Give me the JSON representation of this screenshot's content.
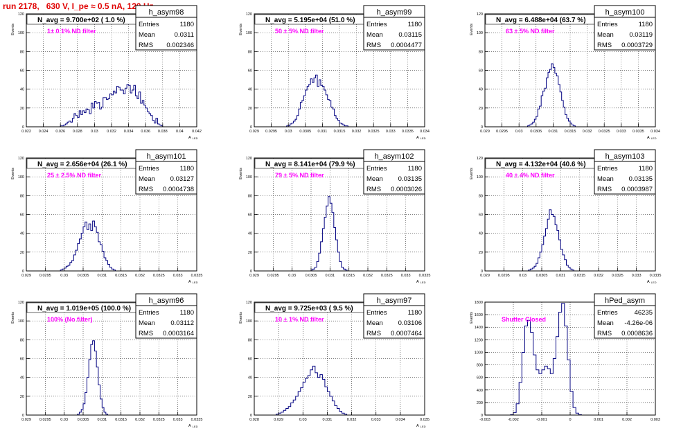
{
  "header": {
    "title": "run 2178,   630 V, I_pe ≈ 0.5 nA, 120 Hz"
  },
  "chart_data": [
    {
      "type": "bar",
      "histogram": "h_asym98",
      "xlabel": "A_{LED}",
      "ylabel": "Events",
      "xlim": [
        0.022,
        0.042
      ],
      "ylim": [
        0,
        120
      ],
      "x_ticks": [
        "0.022",
        "0.024",
        "0.026",
        "0.028",
        "0.03",
        "0.032",
        "0.034",
        "0.036",
        "0.038",
        "0.04",
        "0.042"
      ],
      "y_ticks": [
        "0",
        "20",
        "40",
        "60",
        "80",
        "100",
        "120"
      ],
      "stats": {
        "name": "h_asym98",
        "entries": "1180",
        "mean": "0.0311",
        "rms": "0.002346"
      },
      "n_avg": "N_avg = 9.700e+02 ( 1.0 %)",
      "annotation": "1± 0.1% ND filter",
      "grid": true,
      "bins": {
        "start": 0.026,
        "width": 0.0002,
        "counts": [
          1,
          1,
          2,
          3,
          5,
          6,
          5,
          9,
          14,
          12,
          10,
          17,
          13,
          17,
          15,
          19,
          18,
          14,
          25,
          20,
          27,
          25,
          26,
          19,
          21,
          31,
          31,
          29,
          30,
          35,
          34,
          38,
          36,
          43,
          42,
          39,
          39,
          35,
          41,
          45,
          44,
          36,
          39,
          44,
          33,
          30,
          37,
          25,
          28,
          23,
          20,
          16,
          14,
          12,
          7,
          4,
          9,
          3,
          2,
          1
        ]
      }
    },
    {
      "type": "bar",
      "histogram": "h_asym99",
      "xlabel": "A_{LED}",
      "ylabel": "Events",
      "xlim": [
        0.029,
        0.034
      ],
      "ylim": [
        0,
        120
      ],
      "x_ticks": [
        "0.029",
        "0.0295",
        "0.03",
        "0.0305",
        "0.031",
        "0.0315",
        "0.032",
        "0.0325",
        "0.033",
        "0.0335",
        "0.034"
      ],
      "y_ticks": [
        "0",
        "20",
        "40",
        "60",
        "80",
        "100",
        "120"
      ],
      "stats": {
        "name": "h_asym99",
        "entries": "1180",
        "mean": "0.03115",
        "rms": "0.0004477"
      },
      "n_avg": "N_avg = 5.195e+04 (51.0 %)",
      "annotation": "50 ± 5% ND filter",
      "grid": true,
      "bins": {
        "start": 0.02995,
        "width": 5e-05,
        "counts": [
          1,
          1,
          3,
          4,
          6,
          8,
          12,
          19,
          26,
          28,
          33,
          39,
          43,
          45,
          51,
          47,
          52,
          55,
          43,
          50,
          44,
          43,
          39,
          34,
          29,
          28,
          21,
          19,
          12,
          9,
          7,
          4,
          3,
          2,
          1,
          1
        ]
      }
    },
    {
      "type": "bar",
      "histogram": "h_asym100",
      "xlabel": "A_{LED}",
      "ylabel": "Events",
      "xlim": [
        0.029,
        0.034
      ],
      "ylim": [
        0,
        120
      ],
      "x_ticks": [
        "0.029",
        "0.0295",
        "0.03",
        "0.0305",
        "0.031",
        "0.0315",
        "0.032",
        "0.0325",
        "0.033",
        "0.0335",
        "0.034"
      ],
      "y_ticks": [
        "0",
        "20",
        "40",
        "60",
        "80",
        "100",
        "120"
      ],
      "stats": {
        "name": "h_asym100",
        "entries": "1180",
        "mean": "0.03119",
        "rms": "0.0003729"
      },
      "n_avg": "N_avg = 6.488e+04 (63.7 %)",
      "annotation": "63 ± 5% ND filter",
      "grid": true,
      "bins": {
        "start": 0.03025,
        "width": 5e-05,
        "counts": [
          1,
          2,
          3,
          5,
          8,
          11,
          19,
          22,
          33,
          38,
          41,
          52,
          58,
          61,
          67,
          63,
          57,
          54,
          45,
          37,
          28,
          21,
          13,
          9,
          6,
          4,
          2,
          1
        ]
      }
    },
    {
      "type": "bar",
      "histogram": "h_asym101",
      "xlabel": "A_{LED}",
      "ylabel": "Events",
      "xlim": [
        0.029,
        0.0335
      ],
      "ylim": [
        0,
        120
      ],
      "x_ticks": [
        "0.029",
        "0.0295",
        "0.03",
        "0.0305",
        "0.031",
        "0.0315",
        "0.032",
        "0.0325",
        "0.033",
        "0.0335"
      ],
      "y_ticks": [
        "0",
        "20",
        "40",
        "60",
        "80",
        "100",
        "120"
      ],
      "stats": {
        "name": "h_asym101",
        "entries": "1180",
        "mean": "0.03127",
        "rms": "0.0004738"
      },
      "n_avg": "N_avg = 2.656e+04 (26.1 %)",
      "annotation": "25 ± 2.5% ND filter",
      "grid": true,
      "bins": {
        "start": 0.0299,
        "width": 5e-05,
        "counts": [
          1,
          2,
          3,
          5,
          6,
          9,
          11,
          17,
          22,
          29,
          34,
          40,
          47,
          52,
          44,
          50,
          43,
          53,
          47,
          41,
          31,
          28,
          21,
          14,
          11,
          7,
          4,
          2,
          1
        ]
      }
    },
    {
      "type": "bar",
      "histogram": "h_asym102",
      "xlabel": "A_{LED}",
      "ylabel": "Events",
      "xlim": [
        0.029,
        0.0335
      ],
      "ylim": [
        0,
        120
      ],
      "x_ticks": [
        "0.029",
        "0.0295",
        "0.03",
        "0.0305",
        "0.031",
        "0.0315",
        "0.032",
        "0.0325",
        "0.033",
        "0.0335"
      ],
      "y_ticks": [
        "0",
        "20",
        "40",
        "60",
        "80",
        "100",
        "120"
      ],
      "stats": {
        "name": "h_asym102",
        "entries": "1180",
        "mean": "0.03135",
        "rms": "0.0003026"
      },
      "n_avg": "N_avg = 8.141e+04 (79.9 %)",
      "annotation": "79 ± 5% ND filter",
      "grid": true,
      "bins": {
        "start": 0.0305,
        "width": 5e-05,
        "counts": [
          1,
          2,
          4,
          10,
          19,
          31,
          45,
          57,
          69,
          79,
          72,
          62,
          46,
          33,
          20,
          10,
          4,
          2,
          1
        ]
      }
    },
    {
      "type": "bar",
      "histogram": "h_asym103",
      "xlabel": "A_{LED}",
      "ylabel": "Events",
      "xlim": [
        0.029,
        0.0335
      ],
      "ylim": [
        0,
        120
      ],
      "x_ticks": [
        "0.029",
        "0.0295",
        "0.03",
        "0.0305",
        "0.031",
        "0.0315",
        "0.032",
        "0.0325",
        "0.033",
        "0.0335"
      ],
      "y_ticks": [
        "0",
        "20",
        "40",
        "60",
        "80",
        "100",
        "120"
      ],
      "stats": {
        "name": "h_asym103",
        "entries": "1180",
        "mean": "0.03135",
        "rms": "0.0003987"
      },
      "n_avg": "N_avg = 4.132e+04 (40.6 %)",
      "annotation": "40 ± 4% ND filter",
      "grid": true,
      "bins": {
        "start": 0.03015,
        "width": 5e-05,
        "counts": [
          1,
          2,
          3,
          5,
          8,
          14,
          20,
          28,
          37,
          45,
          55,
          65,
          60,
          58,
          49,
          43,
          33,
          23,
          17,
          12,
          6,
          4,
          2,
          1
        ]
      }
    },
    {
      "type": "bar",
      "histogram": "h_asym96",
      "xlabel": "A_{LED}",
      "ylabel": "Events",
      "xlim": [
        0.029,
        0.0335
      ],
      "ylim": [
        0,
        120
      ],
      "x_ticks": [
        "0.029",
        "0.0295",
        "0.03",
        "0.0305",
        "0.031",
        "0.0315",
        "0.032",
        "0.0325",
        "0.033",
        "0.0335"
      ],
      "y_ticks": [
        "0",
        "20",
        "40",
        "60",
        "80",
        "100",
        "120"
      ],
      "stats": {
        "name": "h_asym96",
        "entries": "1180",
        "mean": "0.03112",
        "rms": "0.0003164"
      },
      "n_avg": "N_avg = 1.019e+05 (100.0 %)",
      "annotation": "100% (No filter)",
      "grid": true,
      "bins": {
        "start": 0.03035,
        "width": 5e-05,
        "counts": [
          1,
          3,
          6,
          12,
          24,
          40,
          59,
          75,
          79,
          68,
          51,
          32,
          17,
          8,
          3,
          1
        ]
      }
    },
    {
      "type": "bar",
      "histogram": "h_asym97",
      "xlabel": "A_{LED}",
      "ylabel": "Events",
      "xlim": [
        0.028,
        0.035
      ],
      "ylim": [
        0,
        120
      ],
      "x_ticks": [
        "0.028",
        "0.029",
        "0.03",
        "0.031",
        "0.032",
        "0.033",
        "0.034",
        "0.035"
      ],
      "y_ticks": [
        "0",
        "20",
        "40",
        "60",
        "80",
        "100",
        "120"
      ],
      "stats": {
        "name": "h_asym97",
        "entries": "1180",
        "mean": "0.03106",
        "rms": "0.0007464"
      },
      "n_avg": "N_avg = 9.725e+03 ( 9.5 %)",
      "annotation": "10 ± 1% ND filter",
      "grid": true,
      "bins": {
        "start": 0.0289,
        "width": 0.0001,
        "counts": [
          1,
          2,
          3,
          5,
          7,
          9,
          13,
          16,
          20,
          25,
          29,
          35,
          39,
          42,
          48,
          52,
          45,
          40,
          43,
          38,
          30,
          25,
          20,
          15,
          10,
          7,
          4,
          2,
          1
        ]
      }
    },
    {
      "type": "line",
      "histogram": "hPed_asym",
      "xlabel": "",
      "ylabel": "Events",
      "xlim": [
        -0.003,
        0.003
      ],
      "ylim": [
        0,
        1800
      ],
      "x_ticks": [
        "-0.003",
        "-0.002",
        "-0.001",
        "0",
        "0.001",
        "0.002",
        "0.003"
      ],
      "y_ticks": [
        "0",
        "200",
        "400",
        "600",
        "800",
        "1000",
        "1200",
        "1400",
        "1600",
        "1800"
      ],
      "stats": {
        "name": "hPed_asym",
        "entries": "46235",
        "mean": "-4.26e-06",
        "rms": "0.0008636"
      },
      "n_avg": "",
      "annotation": "Shutter Closed",
      "grid": true,
      "bins": {
        "start": -0.0021,
        "width": 0.0001,
        "counts": [
          5,
          40,
          180,
          520,
          1000,
          1420,
          1510,
          1320,
          960,
          720,
          660,
          720,
          780,
          740,
          660,
          900,
          1250,
          1640,
          1780,
          1420,
          880,
          380,
          120,
          30,
          5
        ]
      }
    }
  ]
}
